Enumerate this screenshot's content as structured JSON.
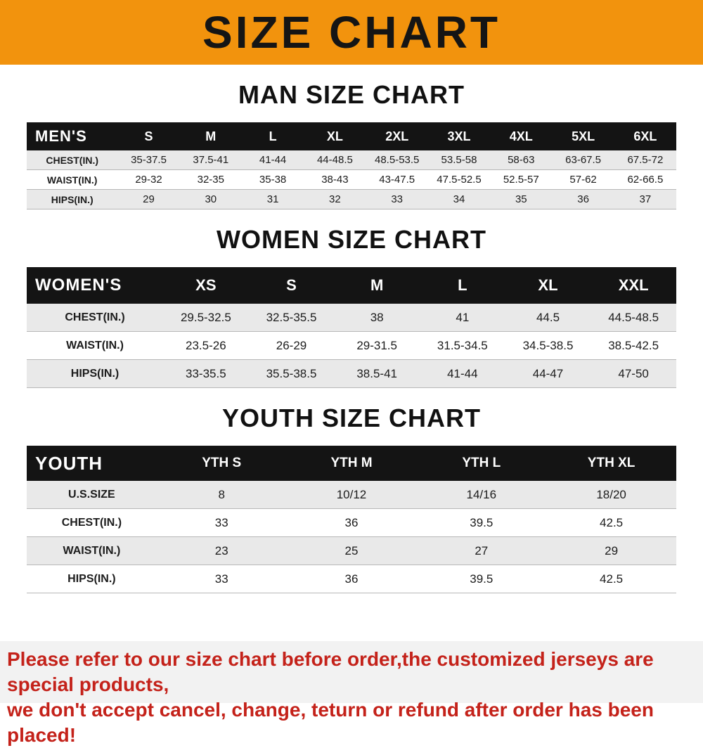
{
  "title": "SIZE CHART",
  "sections": [
    {
      "heading": "MAN SIZE CHART",
      "header_label": "MEN'S",
      "columns": [
        "S",
        "M",
        "L",
        "XL",
        "2XL",
        "3XL",
        "4XL",
        "5XL",
        "6XL"
      ],
      "rows": [
        {
          "label": "CHEST(IN.)",
          "values": [
            "35-37.5",
            "37.5-41",
            "41-44",
            "44-48.5",
            "48.5-53.5",
            "53.5-58",
            "58-63",
            "63-67.5",
            "67.5-72"
          ]
        },
        {
          "label": "WAIST(IN.)",
          "values": [
            "29-32",
            "32-35",
            "35-38",
            "38-43",
            "43-47.5",
            "47.5-52.5",
            "52.5-57",
            "57-62",
            "62-66.5"
          ]
        },
        {
          "label": "HIPS(IN.)",
          "values": [
            "29",
            "30",
            "31",
            "32",
            "33",
            "34",
            "35",
            "36",
            "37"
          ]
        }
      ]
    },
    {
      "heading": "WOMEN SIZE CHART",
      "header_label": "WOMEN'S",
      "columns": [
        "XS",
        "S",
        "M",
        "L",
        "XL",
        "XXL"
      ],
      "rows": [
        {
          "label": "CHEST(IN.)",
          "values": [
            "29.5-32.5",
            "32.5-35.5",
            "38",
            "41",
            "44.5",
            "44.5-48.5"
          ]
        },
        {
          "label": "WAIST(IN.)",
          "values": [
            "23.5-26",
            "26-29",
            "29-31.5",
            "31.5-34.5",
            "34.5-38.5",
            "38.5-42.5"
          ]
        },
        {
          "label": "HIPS(IN.)",
          "values": [
            "33-35.5",
            "35.5-38.5",
            "38.5-41",
            "41-44",
            "44-47",
            "47-50"
          ]
        }
      ]
    },
    {
      "heading": "YOUTH SIZE CHART",
      "header_label": "YOUTH",
      "columns": [
        "YTH S",
        "YTH M",
        "YTH L",
        "YTH XL"
      ],
      "rows": [
        {
          "label": "U.S.SIZE",
          "values": [
            "8",
            "10/12",
            "14/16",
            "18/20"
          ]
        },
        {
          "label": "CHEST(IN.)",
          "values": [
            "33",
            "36",
            "39.5",
            "42.5"
          ]
        },
        {
          "label": "WAIST(IN.)",
          "values": [
            "23",
            "25",
            "27",
            "29"
          ]
        },
        {
          "label": "HIPS(IN.)",
          "values": [
            "33",
            "36",
            "39.5",
            "42.5"
          ]
        }
      ]
    }
  ],
  "footer": {
    "line1": "Please refer to our size chart before order,the customized jerseys are special products,",
    "line2": "we don't accept cancel, change, teturn or refund after order has been placed!"
  },
  "colors": {
    "banner_orange": "#f2930d",
    "header_black": "#141414",
    "row_gray": "#e9e9e9",
    "footer_red": "#c4221a",
    "footer_bg": "#f2f2f2"
  }
}
